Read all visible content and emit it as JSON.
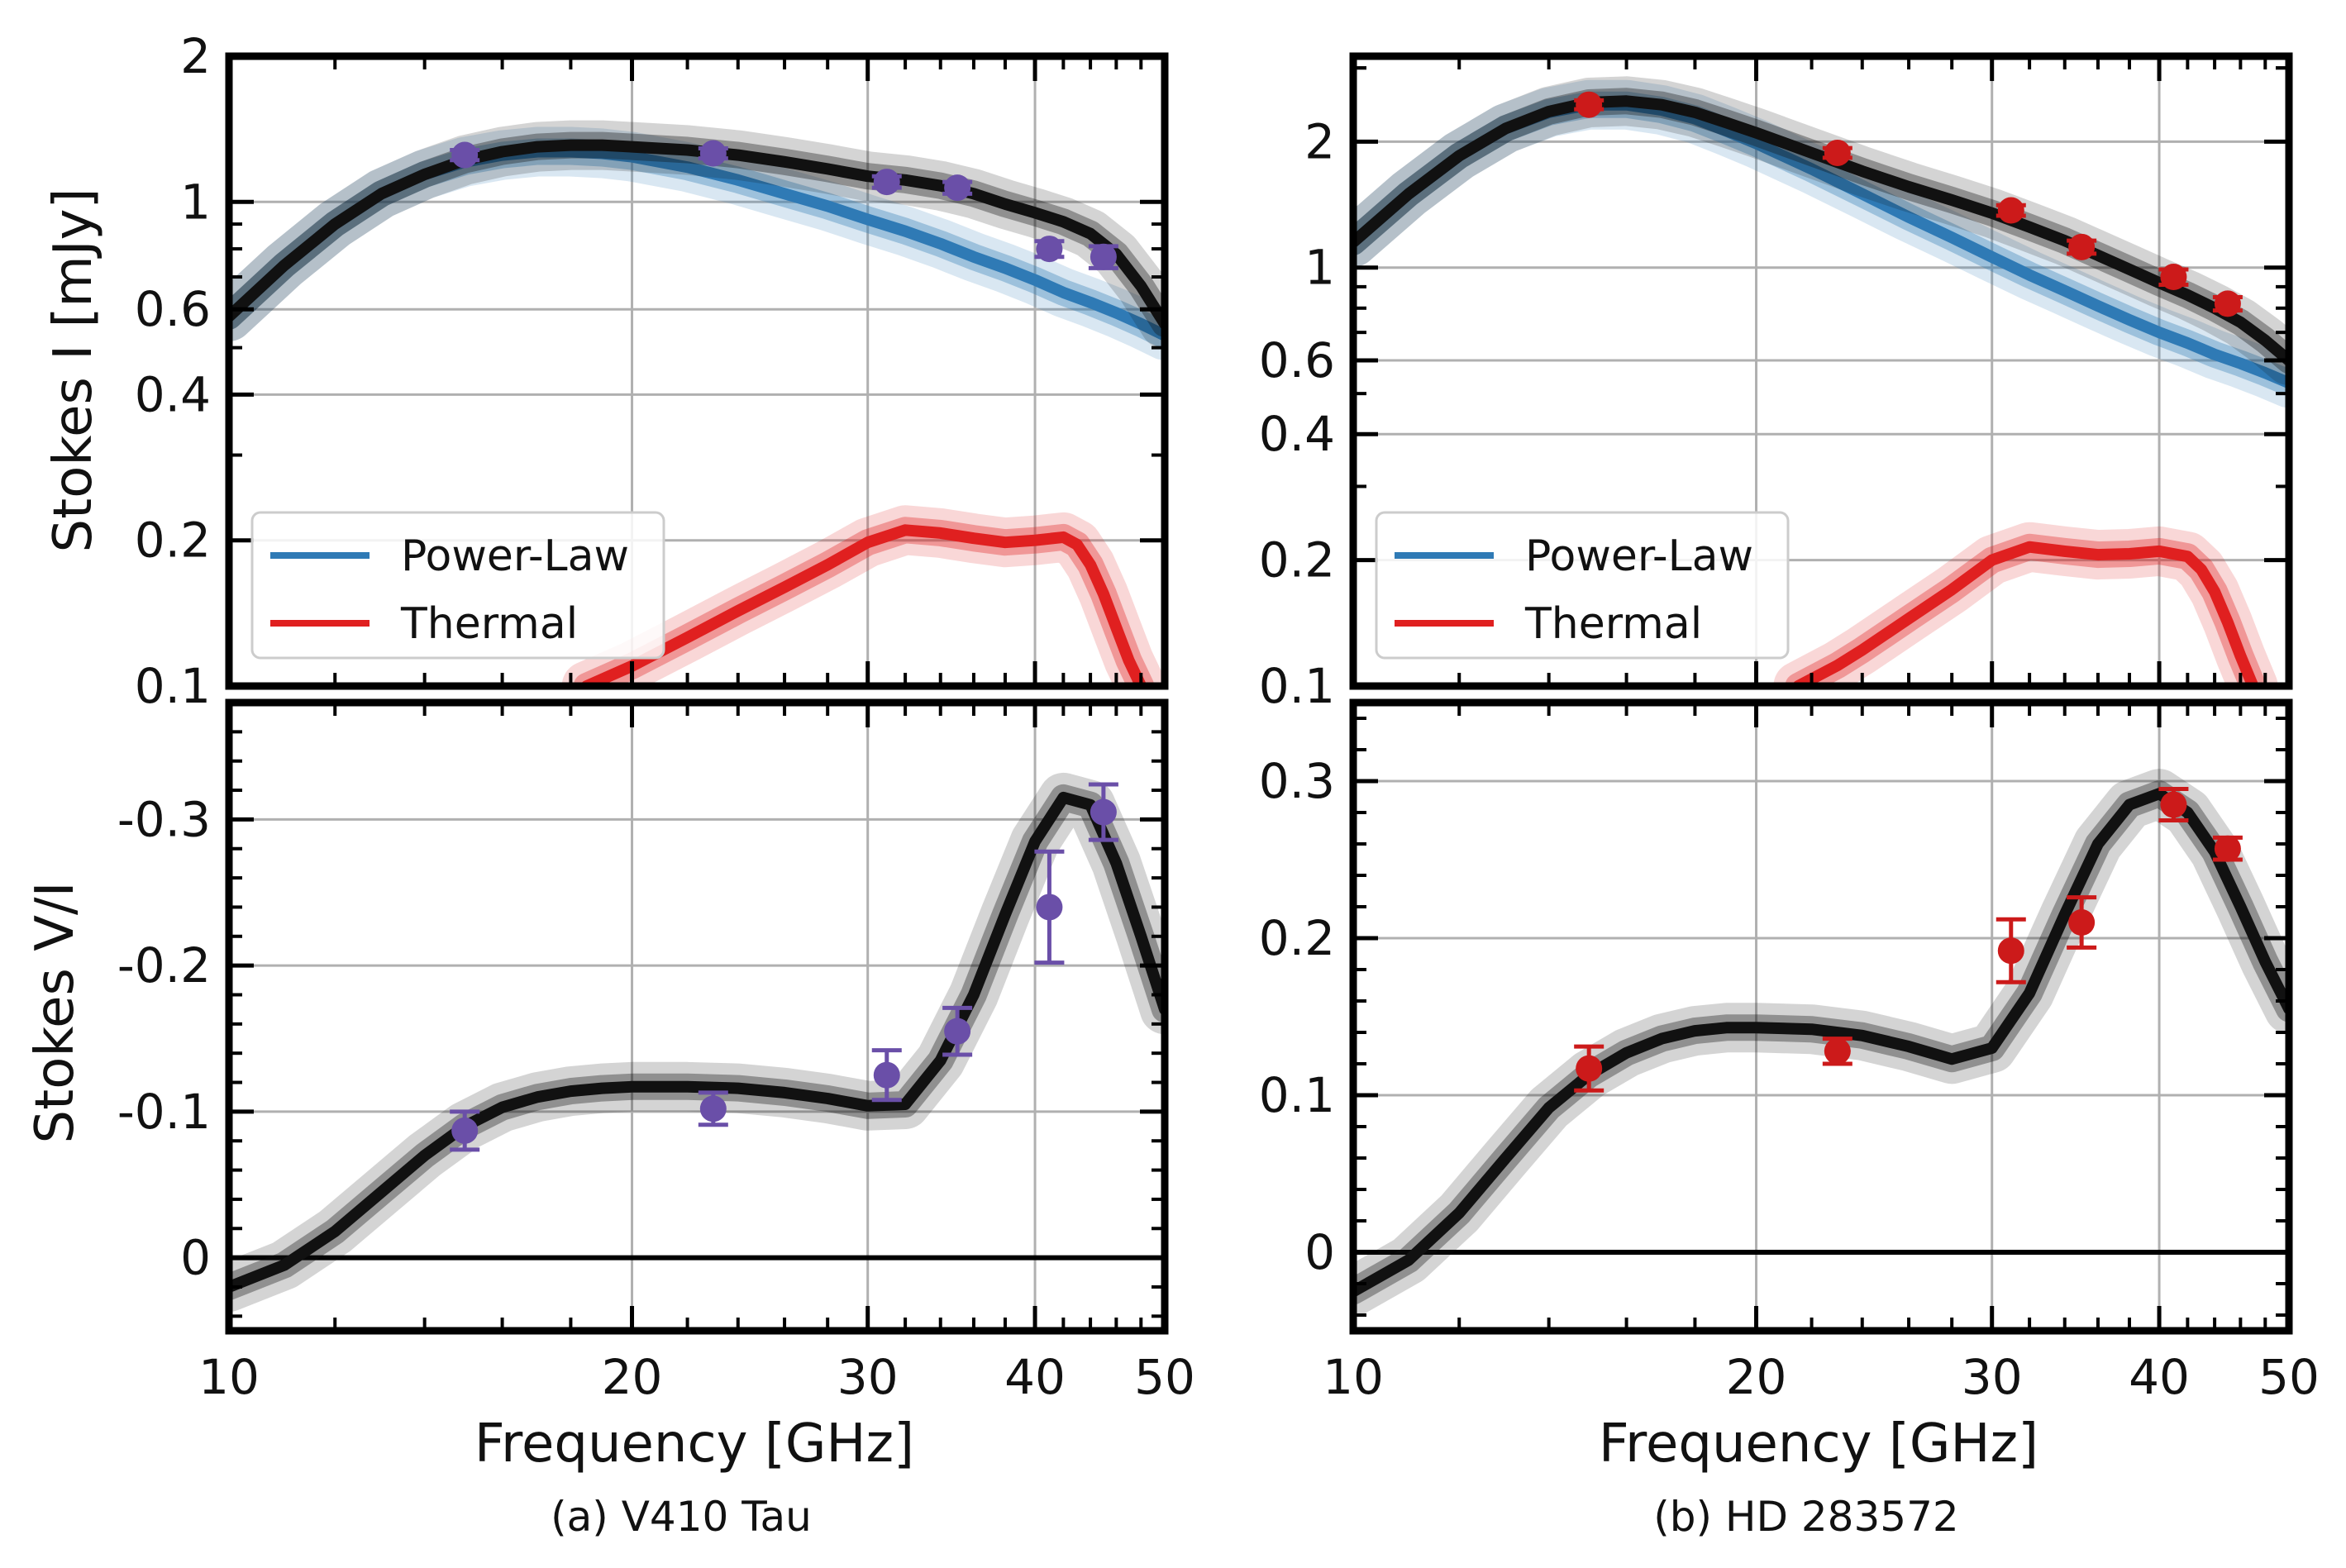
{
  "colors": {
    "power_law": "#2f7ab5",
    "thermal": "#e02020",
    "model": "#111111",
    "data_a": "#6a4fa8",
    "data_b": "#cc1a1a",
    "grid": "#b0b0b0"
  },
  "chart_data": [
    {
      "panel": "a-top",
      "type": "line",
      "ylabel": "Stokes I [mJy]",
      "xlabel": "",
      "xscale": "log",
      "yscale": "log",
      "xlim": [
        10,
        50
      ],
      "ylim": [
        0.1,
        2
      ],
      "grid": true,
      "x_ticks": [
        10,
        20,
        30,
        40,
        50
      ],
      "y_ticks": [
        0.1,
        0.2,
        0.4,
        0.6,
        1,
        2
      ],
      "y_tick_labels": [
        "0.1",
        "0.2",
        "0.4",
        "0.6",
        "1",
        "2"
      ],
      "legend": {
        "placement": "lower-left",
        "entries": [
          "Power-Law",
          "Thermal"
        ]
      },
      "series": [
        {
          "name": "Power-Law",
          "color": "#2f7ab5",
          "x": [
            10,
            11,
            12,
            13,
            14,
            15,
            16,
            17,
            18,
            19,
            20,
            22,
            24,
            26,
            28,
            30,
            32,
            34,
            36,
            38,
            40,
            42,
            44,
            46,
            48,
            50
          ],
          "y": [
            0.58,
            0.74,
            0.9,
            1.04,
            1.14,
            1.21,
            1.25,
            1.27,
            1.27,
            1.26,
            1.24,
            1.18,
            1.11,
            1.04,
            0.98,
            0.92,
            0.87,
            0.82,
            0.77,
            0.73,
            0.69,
            0.65,
            0.62,
            0.59,
            0.56,
            0.53
          ]
        },
        {
          "name": "Thermal",
          "color": "#e02020",
          "x": [
            18.5,
            20,
            22,
            24,
            26,
            28,
            30,
            32,
            34,
            36,
            38,
            40,
            42,
            43,
            44,
            45,
            46,
            47,
            48
          ],
          "y": [
            0.1,
            0.11,
            0.126,
            0.143,
            0.16,
            0.178,
            0.198,
            0.21,
            0.207,
            0.202,
            0.198,
            0.2,
            0.203,
            0.196,
            0.178,
            0.155,
            0.132,
            0.113,
            0.1
          ]
        },
        {
          "name": "",
          "color": "#111111",
          "x": [
            10,
            11,
            12,
            13,
            14,
            15,
            16,
            17,
            18,
            19,
            20,
            22,
            24,
            26,
            28,
            30,
            32,
            34,
            36,
            38,
            40,
            42,
            44,
            46,
            48,
            50
          ],
          "y": [
            0.58,
            0.74,
            0.9,
            1.04,
            1.14,
            1.22,
            1.27,
            1.3,
            1.31,
            1.31,
            1.3,
            1.28,
            1.25,
            1.21,
            1.17,
            1.13,
            1.11,
            1.08,
            1.04,
            0.99,
            0.95,
            0.91,
            0.86,
            0.78,
            0.67,
            0.56
          ]
        }
      ],
      "points": {
        "color": "#6a4fa8",
        "x": [
          15,
          23,
          31,
          35,
          41,
          45
        ],
        "y": [
          1.25,
          1.26,
          1.1,
          1.07,
          0.8,
          0.77
        ],
        "err": [
          0.03,
          0.03,
          0.03,
          0.03,
          0.03,
          0.04
        ]
      }
    },
    {
      "panel": "a-bottom",
      "type": "line",
      "ylabel": "Stokes V/I",
      "xlabel": "Frequency [GHz]",
      "xscale": "log",
      "yscale": "linear",
      "xlim": [
        10,
        50
      ],
      "ylim": [
        0.05,
        -0.38
      ],
      "grid": true,
      "x_ticks": [
        10,
        20,
        30,
        40,
        50
      ],
      "x_tick_labels": [
        "10",
        "20",
        "30",
        "40",
        "50"
      ],
      "y_ticks": [
        0,
        -0.1,
        -0.2,
        -0.3
      ],
      "y_tick_labels": [
        "0",
        "-0.1",
        "-0.2",
        "-0.3"
      ],
      "series": [
        {
          "name": "",
          "color": "#111111",
          "x": [
            10,
            11,
            12,
            13,
            14,
            15,
            16,
            17,
            18,
            19,
            20,
            22,
            24,
            26,
            28,
            30,
            32,
            34,
            36,
            38,
            40,
            42,
            44,
            46,
            48,
            50
          ],
          "y": [
            0.02,
            0.005,
            -0.018,
            -0.045,
            -0.07,
            -0.09,
            -0.103,
            -0.11,
            -0.114,
            -0.116,
            -0.117,
            -0.117,
            -0.116,
            -0.113,
            -0.109,
            -0.104,
            -0.105,
            -0.135,
            -0.18,
            -0.235,
            -0.285,
            -0.315,
            -0.31,
            -0.27,
            -0.22,
            -0.17
          ]
        }
      ],
      "points": {
        "color": "#6a4fa8",
        "x": [
          15,
          23,
          31,
          35,
          41,
          45
        ],
        "y": [
          -0.087,
          -0.102,
          -0.125,
          -0.155,
          -0.24,
          -0.305
        ],
        "err": [
          0.013,
          0.011,
          0.017,
          0.016,
          0.038,
          0.019
        ]
      },
      "caption": "(a) V410 Tau"
    },
    {
      "panel": "b-top",
      "type": "line",
      "ylabel": "",
      "xlabel": "",
      "xscale": "log",
      "yscale": "log",
      "xlim": [
        10,
        50
      ],
      "ylim": [
        0.1,
        3.2
      ],
      "grid": true,
      "x_ticks": [
        10,
        20,
        30,
        40,
        50
      ],
      "y_ticks": [
        0.1,
        0.2,
        0.4,
        0.6,
        1,
        2
      ],
      "y_tick_labels": [
        "0.1",
        "0.2",
        "0.4",
        "0.6",
        "1",
        "2"
      ],
      "legend": {
        "placement": "lower-left",
        "entries": [
          "Power-Law",
          "Thermal"
        ]
      },
      "series": [
        {
          "name": "Power-Law",
          "color": "#2f7ab5",
          "x": [
            10,
            11,
            12,
            13,
            14,
            15,
            16,
            17,
            18,
            19,
            20,
            22,
            24,
            26,
            28,
            30,
            32,
            34,
            36,
            38,
            40,
            42,
            44,
            46,
            48,
            50
          ],
          "y": [
            1.15,
            1.5,
            1.85,
            2.15,
            2.35,
            2.45,
            2.45,
            2.38,
            2.27,
            2.12,
            1.98,
            1.72,
            1.5,
            1.32,
            1.18,
            1.06,
            0.96,
            0.88,
            0.81,
            0.75,
            0.7,
            0.66,
            0.62,
            0.59,
            0.56,
            0.53
          ]
        },
        {
          "name": "Thermal",
          "color": "#e02020",
          "x": [
            21.5,
            23,
            24,
            26,
            28,
            30,
            32,
            34,
            36,
            38,
            40,
            42,
            43,
            44,
            45,
            46,
            47
          ],
          "y": [
            0.1,
            0.112,
            0.122,
            0.145,
            0.17,
            0.2,
            0.215,
            0.21,
            0.206,
            0.207,
            0.21,
            0.204,
            0.19,
            0.168,
            0.142,
            0.118,
            0.1
          ]
        },
        {
          "name": "",
          "color": "#111111",
          "x": [
            10,
            11,
            12,
            13,
            14,
            15,
            16,
            17,
            18,
            19,
            20,
            22,
            24,
            26,
            28,
            30,
            32,
            34,
            36,
            38,
            40,
            42,
            44,
            46,
            48,
            50
          ],
          "y": [
            1.15,
            1.5,
            1.85,
            2.15,
            2.36,
            2.48,
            2.5,
            2.45,
            2.35,
            2.22,
            2.1,
            1.88,
            1.7,
            1.56,
            1.45,
            1.35,
            1.25,
            1.16,
            1.07,
            0.99,
            0.92,
            0.86,
            0.8,
            0.74,
            0.67,
            0.6
          ]
        }
      ],
      "points": {
        "color": "#cc1a1a",
        "x": [
          15,
          23,
          31,
          35,
          41,
          45
        ],
        "y": [
          2.45,
          1.88,
          1.37,
          1.12,
          0.95,
          0.82
        ],
        "err": [
          0.06,
          0.05,
          0.04,
          0.04,
          0.04,
          0.03
        ]
      }
    },
    {
      "panel": "b-bottom",
      "type": "line",
      "ylabel": "",
      "xlabel": "Frequency [GHz]",
      "xscale": "log",
      "yscale": "linear",
      "xlim": [
        10,
        50
      ],
      "ylim": [
        -0.05,
        0.35
      ],
      "grid": true,
      "x_ticks": [
        10,
        20,
        30,
        40,
        50
      ],
      "x_tick_labels": [
        "10",
        "20",
        "30",
        "40",
        "50"
      ],
      "y_ticks": [
        0,
        0.1,
        0.2,
        0.3
      ],
      "y_tick_labels": [
        "0",
        "0.1",
        "0.2",
        "0.3"
      ],
      "series": [
        {
          "name": "",
          "color": "#111111",
          "x": [
            10,
            11,
            12,
            13,
            14,
            15,
            16,
            17,
            18,
            19,
            20,
            22,
            24,
            26,
            28,
            30,
            32,
            34,
            36,
            38,
            40,
            42,
            44,
            46,
            48,
            50
          ],
          "y": [
            -0.025,
            -0.005,
            0.025,
            0.06,
            0.092,
            0.113,
            0.127,
            0.136,
            0.141,
            0.143,
            0.143,
            0.142,
            0.138,
            0.131,
            0.123,
            0.13,
            0.165,
            0.215,
            0.26,
            0.285,
            0.292,
            0.28,
            0.255,
            0.22,
            0.185,
            0.155
          ]
        }
      ],
      "points": {
        "color": "#cc1a1a",
        "x": [
          15,
          23,
          31,
          35,
          41,
          45
        ],
        "y": [
          0.117,
          0.128,
          0.192,
          0.21,
          0.285,
          0.257
        ],
        "err": [
          0.014,
          0.008,
          0.02,
          0.016,
          0.01,
          0.007
        ]
      },
      "caption": "(b) HD 283572"
    }
  ]
}
